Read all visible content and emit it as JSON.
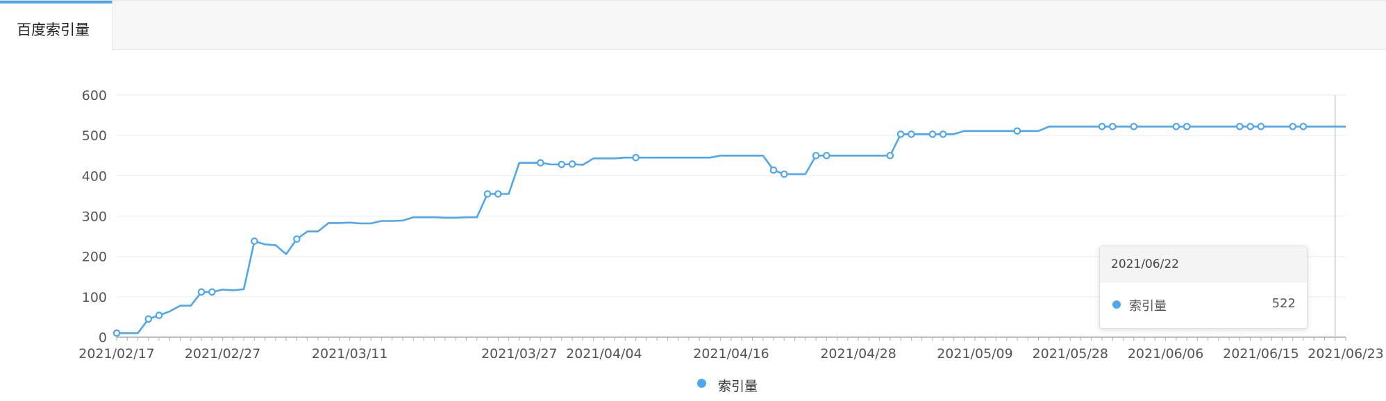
{
  "tab": {
    "label": "百度索引量"
  },
  "chart_data": {
    "type": "line",
    "title": "",
    "xlabel": "",
    "ylabel": "",
    "ylim": [
      0,
      600
    ],
    "yticks": [
      0,
      100,
      200,
      300,
      400,
      500,
      600
    ],
    "grid": true,
    "legend_position": "bottom-center",
    "color": "#4da6ee",
    "x": [
      "2021/02/17",
      "2021/02/18",
      "2021/02/19",
      "2021/02/20",
      "2021/02/21",
      "2021/02/22",
      "2021/02/23",
      "2021/02/24",
      "2021/02/25",
      "2021/02/26",
      "2021/02/27",
      "2021/02/28",
      "2021/03/01",
      "2021/03/02",
      "2021/03/03",
      "2021/03/04",
      "2021/03/05",
      "2021/03/06",
      "2021/03/07",
      "2021/03/08",
      "2021/03/09",
      "2021/03/10",
      "2021/03/11",
      "2021/03/12",
      "2021/03/13",
      "2021/03/14",
      "2021/03/15",
      "2021/03/16",
      "2021/03/17",
      "2021/03/18",
      "2021/03/19",
      "2021/03/20",
      "2021/03/21",
      "2021/03/22",
      "2021/03/23",
      "2021/03/24",
      "2021/03/25",
      "2021/03/26",
      "2021/03/27",
      "2021/03/28",
      "2021/03/29",
      "2021/03/30",
      "2021/03/31",
      "2021/04/01",
      "2021/04/02",
      "2021/04/03",
      "2021/04/04",
      "2021/04/05",
      "2021/04/06",
      "2021/04/07",
      "2021/04/08",
      "2021/04/09",
      "2021/04/10",
      "2021/04/11",
      "2021/04/12",
      "2021/04/13",
      "2021/04/14",
      "2021/04/15",
      "2021/04/16",
      "2021/04/17",
      "2021/04/18",
      "2021/04/19",
      "2021/04/20",
      "2021/04/21",
      "2021/04/22",
      "2021/04/23",
      "2021/04/24",
      "2021/04/25",
      "2021/04/26",
      "2021/04/27",
      "2021/04/28",
      "2021/04/29",
      "2021/04/30",
      "2021/05/01",
      "2021/05/02",
      "2021/05/03",
      "2021/05/04",
      "2021/05/05",
      "2021/05/06",
      "2021/05/07",
      "2021/05/08",
      "2021/05/09",
      "2021/05/10",
      "2021/05/11",
      "2021/05/12",
      "2021/05/13",
      "2021/05/14",
      "2021/05/15",
      "2021/05/16",
      "2021/05/17",
      "2021/05/28",
      "2021/05/29",
      "2021/05/30",
      "2021/05/31",
      "2021/06/01",
      "2021/06/02",
      "2021/06/03",
      "2021/06/04",
      "2021/06/05",
      "2021/06/06",
      "2021/06/07",
      "2021/06/08",
      "2021/06/09",
      "2021/06/10",
      "2021/06/11",
      "2021/06/12",
      "2021/06/13",
      "2021/06/14",
      "2021/06/15",
      "2021/06/16",
      "2021/06/17",
      "2021/06/18",
      "2021/06/19",
      "2021/06/20",
      "2021/06/21",
      "2021/06/22",
      "2021/06/23"
    ],
    "xticks_shown": [
      "2021/02/17",
      "2021/02/27",
      "2021/03/11",
      "2021/03/27",
      "2021/04/04",
      "2021/04/16",
      "2021/04/28",
      "2021/05/09",
      "2021/05/28",
      "2021/06/06",
      "2021/06/15",
      "2021/06/23"
    ],
    "series": [
      {
        "name": "索引量",
        "values": [
          10,
          10,
          10,
          45,
          54,
          64,
          78,
          78,
          112,
          112,
          118,
          116,
          119,
          238,
          230,
          228,
          206,
          243,
          262,
          262,
          283,
          283,
          284,
          282,
          282,
          288,
          288,
          289,
          297,
          297,
          297,
          296,
          296,
          297,
          297,
          355,
          355,
          355,
          432,
          432,
          432,
          428,
          428,
          429,
          427,
          443,
          443,
          443,
          445,
          445,
          445,
          445,
          445,
          445,
          445,
          445,
          445,
          450,
          450,
          450,
          450,
          450,
          414,
          404,
          404,
          404,
          450,
          450,
          450,
          450,
          450,
          450,
          450,
          450,
          503,
          503,
          503,
          503,
          503,
          503,
          511,
          511,
          511,
          511,
          511,
          511,
          511,
          511,
          522,
          522,
          522,
          522,
          522,
          522,
          522,
          522,
          522,
          522,
          522,
          522,
          522,
          522,
          522,
          522,
          522,
          522,
          522,
          522,
          522,
          522,
          522,
          522,
          522,
          522,
          522,
          522,
          522
        ],
        "marked_points": [
          "2021/02/17",
          "2021/02/20",
          "2021/02/21",
          "2021/02/25",
          "2021/02/26",
          "2021/03/02",
          "2021/03/06",
          "2021/03/24",
          "2021/03/25",
          "2021/03/29",
          "2021/03/31",
          "2021/04/01",
          "2021/04/07",
          "2021/04/20",
          "2021/04/21",
          "2021/04/24",
          "2021/04/25",
          "2021/05/01",
          "2021/05/02",
          "2021/05/03",
          "2021/05/05",
          "2021/05/06",
          "2021/05/13",
          "2021/05/31",
          "2021/06/01",
          "2021/06/03",
          "2021/06/07",
          "2021/06/08",
          "2021/06/13",
          "2021/06/14",
          "2021/06/15",
          "2021/06/18",
          "2021/06/19"
        ]
      }
    ],
    "hover_x": "2021/06/22",
    "tooltip": {
      "date": "2021/06/22",
      "series": "索引量",
      "value": "522"
    }
  },
  "legend": {
    "label": "索引量"
  }
}
